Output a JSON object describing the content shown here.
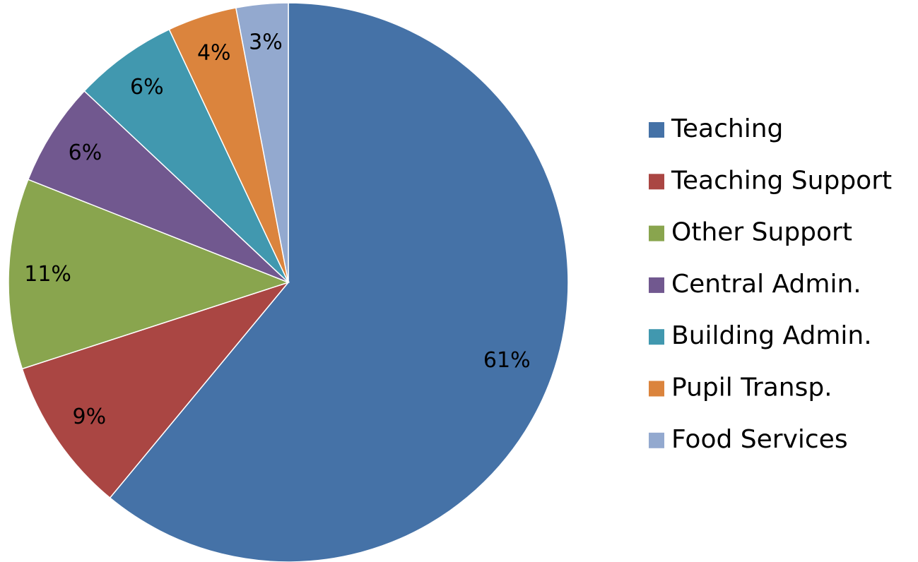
{
  "chart_data": {
    "type": "pie",
    "categories": [
      "Teaching",
      "Teaching Support",
      "Other Support",
      "Central Admin.",
      "Building Admin.",
      "Pupil Transp.",
      "Food Services"
    ],
    "values": [
      61,
      9,
      11,
      6,
      6,
      4,
      3
    ],
    "value_labels": [
      "61%",
      "9%",
      "11%",
      "6%",
      "6%",
      "4%",
      "3%"
    ],
    "colors": [
      "#4572a7",
      "#aa4643",
      "#89a54e",
      "#71588f",
      "#4198af",
      "#db843d",
      "#93a9cf"
    ],
    "legend": "right"
  }
}
